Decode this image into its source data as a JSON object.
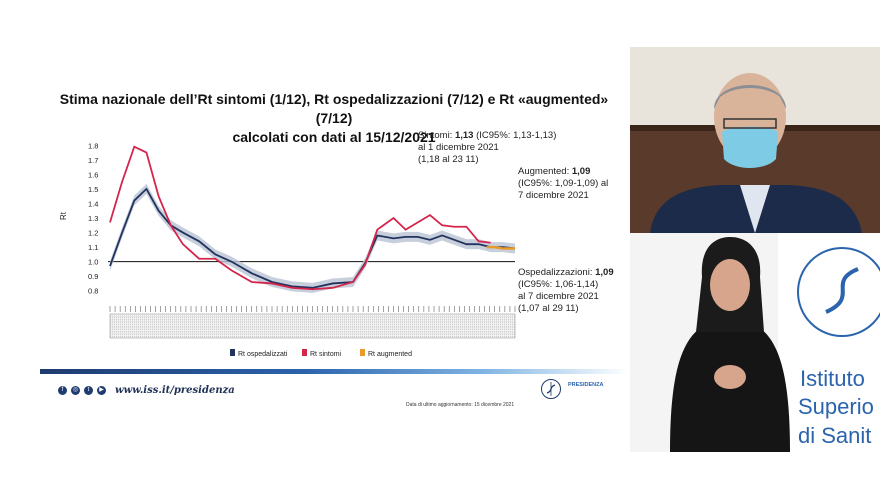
{
  "slide": {
    "title_line1": "Stima nazionale dell’Rt sintomi (1/12), Rt ospedalizzazioni (7/12) e Rt «augmented» (7/12)",
    "title_line2": "calcolati con dati al 15/12/2021",
    "ann_sintomi": {
      "label": "Sintomi: ",
      "value": "1,13",
      "ci": " (IC95%: 1,13-1,13)",
      "line2": "al 1 dicembre 2021",
      "line3": "(1,18 al 23 11)"
    },
    "ann_augmented": {
      "label": "Augmented: ",
      "value": "1,09",
      "line2": "(IC95%: 1,09-1,09)   al",
      "line3": "7 dicembre 2021"
    },
    "ann_osped": {
      "label": "Ospedalizzazioni: ",
      "value": "1,09",
      "line2": " (IC95%: 1,06-1,14)",
      "line3": "al 7 dicembre 2021",
      "line4": "(1,07 al 29 11)"
    },
    "footer_url": "www.iss.it/presidenza",
    "footer_update": "Data di ultimo aggiornamento: 15 dicembre 2021",
    "footer_pres": "PRESIDENZA",
    "colors": {
      "brand_blue": "#1f3b70",
      "accent_blue": "#2b64ad"
    }
  },
  "chart_data": {
    "type": "line",
    "ylabel": "Rt",
    "yticks": [
      "1.8",
      "1.7",
      "1.6",
      "1.5",
      "1.4",
      "1.3",
      "1.2",
      "1.1",
      "1.0",
      "0.9",
      "0.8"
    ],
    "ylim": [
      0.75,
      1.85
    ],
    "xlim": [
      0,
      100
    ],
    "reference_line": 1.0,
    "legend": [
      "Rt ospedalizzati",
      "Rt sintomi",
      "Rt augmented"
    ],
    "legend_placement": "bottom",
    "series": [
      {
        "name": "Rt ospedalizzati",
        "color": "#22335e",
        "x": [
          0,
          3,
          6,
          9,
          12,
          15,
          18,
          22,
          26,
          30,
          35,
          40,
          45,
          50,
          55,
          60,
          63,
          66,
          70,
          73,
          76,
          79,
          82,
          85,
          88,
          91,
          94,
          97,
          100
        ],
        "y": [
          0.97,
          1.2,
          1.42,
          1.5,
          1.35,
          1.25,
          1.2,
          1.14,
          1.05,
          1.0,
          0.92,
          0.86,
          0.83,
          0.82,
          0.85,
          0.86,
          0.99,
          1.18,
          1.16,
          1.17,
          1.17,
          1.15,
          1.18,
          1.15,
          1.12,
          1.12,
          1.1,
          1.1,
          1.09
        ]
      },
      {
        "name": "Rt sintomi",
        "color": "#d4254b",
        "x": [
          0,
          3,
          6,
          9,
          12,
          15,
          18,
          22,
          26,
          30,
          35,
          40,
          45,
          50,
          55,
          60,
          63,
          66,
          70,
          73,
          76,
          79,
          82,
          85,
          88,
          91,
          94
        ],
        "y": [
          1.27,
          1.55,
          1.79,
          1.75,
          1.45,
          1.25,
          1.12,
          1.02,
          1.02,
          0.94,
          0.86,
          0.85,
          0.82,
          0.81,
          0.82,
          0.86,
          0.98,
          1.22,
          1.3,
          1.22,
          1.27,
          1.32,
          1.25,
          1.24,
          1.24,
          1.14,
          1.13
        ]
      },
      {
        "name": "Rt augmented",
        "color": "#e89a2a",
        "x": [
          93,
          95,
          97,
          100
        ],
        "y": [
          1.1,
          1.1,
          1.09,
          1.09
        ]
      }
    ]
  }
}
